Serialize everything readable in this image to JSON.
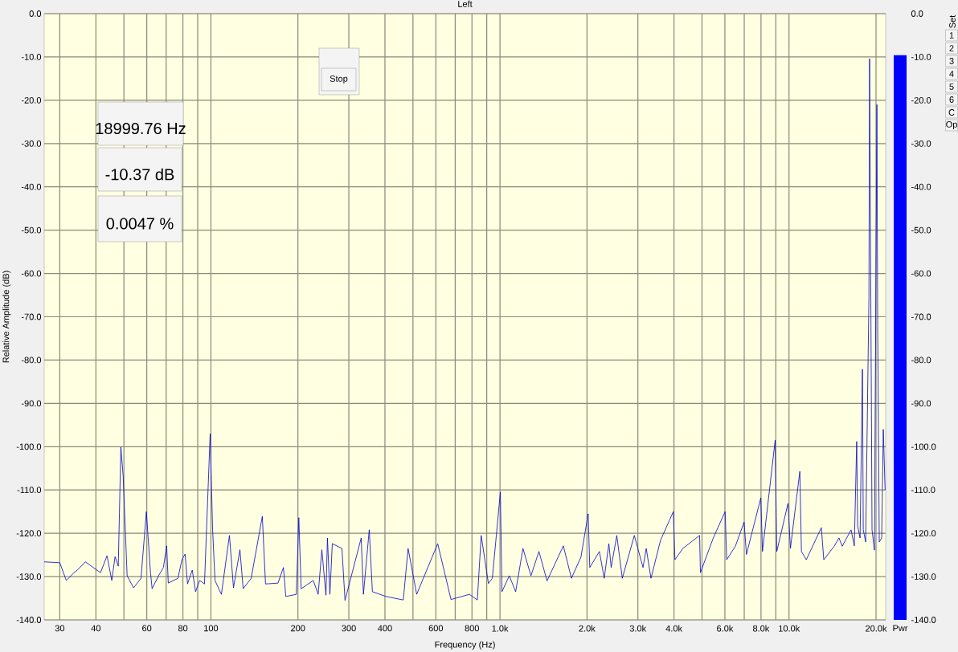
{
  "chart_data": [
    {
      "type": "line",
      "title": "Left",
      "xlabel": "Frequency (Hz)",
      "ylabel": "Relative Amplitude (dB)",
      "log": "x",
      "grid": true,
      "x": [
        26.5,
        30,
        31.6,
        33.6,
        34.5,
        36.8,
        41.5,
        43.7,
        45.4,
        46.6,
        47.8,
        48.8,
        49.7,
        51.3,
        54.0,
        57.3,
        59.8,
        61.8,
        62.6,
        65.9,
        68.5,
        70.3,
        71.2,
        76.9,
        79.4,
        81.4,
        83.0,
        86.2,
        88.5,
        91.4,
        95.0,
        99.4,
        101.3,
        103.3,
        108.7,
        115.9,
        119.7,
        126,
        129.3,
        137.8,
        150.6,
        154.5,
        170.6,
        178.2,
        181.6,
        197.5,
        201.4,
        205.2,
        226,
        235,
        242,
        250,
        253,
        258,
        263,
        284,
        291,
        331,
        337,
        353,
        362,
        404,
        463,
        481,
        515,
        609,
        677,
        784,
        835,
        861,
        912,
        941,
        1003,
        1016,
        1077,
        1133,
        1201,
        1280,
        1364,
        1455,
        1657,
        1767,
        1906,
        2019,
        2045,
        2208,
        2294,
        2381,
        2425,
        2536,
        2650,
        2916,
        3125,
        3206,
        3330,
        3594,
        3979,
        4030,
        4293,
        4905,
        4937,
        5468,
        6011,
        6087,
        6522,
        6991,
        7124,
        7989,
        8093,
        8955,
        9072,
        9918,
        10112,
        10900,
        11039,
        11474,
        12937,
        13188,
        14329,
        14891,
        15279,
        16394,
        16822,
        17145,
        17278,
        17610,
        17950,
        18066,
        18415,
        18900,
        19000,
        19375,
        19750,
        20136,
        20264,
        20523,
        20920,
        21189,
        21500
      ],
      "series": [
        {
          "color": "#0000cc",
          "values": [
            -126.6,
            -126.8,
            -130.9,
            -129.1,
            -128.5,
            -126.6,
            -129.1,
            -125.2,
            -130.9,
            -125.4,
            -127.6,
            -100.1,
            -106.8,
            -129.8,
            -132.6,
            -130.4,
            -115.0,
            -129.1,
            -132.8,
            -129.8,
            -127.9,
            -122.9,
            -131.5,
            -130.4,
            -126.1,
            -124.8,
            -131.7,
            -128.5,
            -133.5,
            -130.9,
            -131.7,
            -97.0,
            -118.7,
            -130.9,
            -134.1,
            -120.5,
            -132.6,
            -123.8,
            -132.8,
            -130.4,
            -116.1,
            -131.7,
            -131.5,
            -127.9,
            -134.6,
            -134.1,
            -116.4,
            -132.8,
            -130.9,
            -134.1,
            -123.8,
            -134.3,
            -121.1,
            -134.1,
            -122.4,
            -123.5,
            -135.5,
            -121.1,
            -134.1,
            -119.2,
            -133.5,
            -134.6,
            -135.4,
            -123.5,
            -134.1,
            -122.4,
            -135.3,
            -134.1,
            -135.4,
            -120.5,
            -131.6,
            -130.4,
            -110.5,
            -133.5,
            -129.8,
            -133.5,
            -123.5,
            -129.8,
            -124.2,
            -131.0,
            -122.9,
            -130.4,
            -125.5,
            -115.5,
            -127.9,
            -124.2,
            -130.4,
            -122.4,
            -127.9,
            -120.5,
            -130.4,
            -120.5,
            -127.9,
            -123.5,
            -130.4,
            -121.6,
            -115.0,
            -126.1,
            -123.5,
            -120.5,
            -129.1,
            -121.1,
            -115.0,
            -126.1,
            -123.0,
            -117.4,
            -124.9,
            -111.8,
            -124.2,
            -98.5,
            -124.2,
            -113.1,
            -123.5,
            -105.7,
            -124.2,
            -126.1,
            -118.7,
            -126.1,
            -123.0,
            -121.1,
            -123.0,
            -119.2,
            -122.9,
            -98.8,
            -118.3,
            -121.1,
            -82.1,
            -119.2,
            -122.0,
            -65.5,
            -10.4,
            -119.2,
            -123.9,
            -21.0,
            -72.0,
            -122.0,
            -121.1,
            -96.0,
            -110.0
          ]
        }
      ],
      "xlim": [
        26.5,
        21600
      ],
      "ylim": [
        -140,
        0
      ],
      "xticks": [
        30,
        40,
        {
          "value": 50,
          "label": null
        },
        60,
        {
          "value": 70,
          "label": null
        },
        80,
        {
          "value": 90,
          "label": null
        },
        100,
        200,
        300,
        400,
        {
          "value": 500,
          "label": null
        },
        600,
        {
          "value": 700,
          "label": null
        },
        800,
        {
          "value": 900,
          "label": null
        },
        {
          "value": 1000,
          "label": "1.0k"
        },
        {
          "value": 2000,
          "label": "2.0k"
        },
        {
          "value": 3000,
          "label": "3.0k"
        },
        {
          "value": 4000,
          "label": "4.0k"
        },
        {
          "value": 5000,
          "label": null
        },
        {
          "value": 6000,
          "label": "6.0k"
        },
        {
          "value": 7000,
          "label": null
        },
        {
          "value": 8000,
          "label": "8.0k"
        },
        {
          "value": 9000,
          "label": null
        },
        {
          "value": 10000,
          "label": "10.0k"
        },
        {
          "value": 20000,
          "label": "20.0k"
        }
      ],
      "yticks": [
        {
          "value": 0,
          "label": "0.0"
        },
        {
          "value": -10,
          "label": "-10.0"
        },
        {
          "value": -20,
          "label": "-20.0"
        },
        {
          "value": -30,
          "label": "-30.0"
        },
        {
          "value": -40,
          "label": "-40.0"
        },
        {
          "value": -50,
          "label": "-50.0"
        },
        {
          "value": -60,
          "label": "-60.0"
        },
        {
          "value": -70,
          "label": "-70.0"
        },
        {
          "value": -80,
          "label": "-80.0"
        },
        {
          "value": -90,
          "label": "-90.0"
        },
        {
          "value": -100,
          "label": "-100.0"
        },
        {
          "value": -110,
          "label": "-110.0"
        },
        {
          "value": -120,
          "label": "-120.0"
        },
        {
          "value": -130,
          "label": "-130.0"
        },
        {
          "value": -140,
          "label": "-140.0"
        }
      ],
      "annotations": [
        "18999.76 Hz",
        "-10.37 dB",
        "0.0047 %",
        "Stop"
      ]
    },
    {
      "type": "bar",
      "categories": [
        "Pwr"
      ],
      "values": [
        130.4
      ],
      "base": [
        -140
      ],
      "color": "#0000ff",
      "ylim": [
        -140,
        0
      ],
      "yticks": [
        {
          "value": 0,
          "label": "0.0"
        },
        {
          "value": -10,
          "label": "-10.0"
        },
        {
          "value": -20,
          "label": "-20.0"
        },
        {
          "value": -30,
          "label": "-30.0"
        },
        {
          "value": -40,
          "label": "-40.0"
        },
        {
          "value": -50,
          "label": "-50.0"
        },
        {
          "value": -60,
          "label": "-60.0"
        },
        {
          "value": -70,
          "label": "-70.0"
        },
        {
          "value": -80,
          "label": "-80.0"
        },
        {
          "value": -90,
          "label": "-90.0"
        },
        {
          "value": -100,
          "label": "-100.0"
        },
        {
          "value": -110,
          "label": "-110.0"
        },
        {
          "value": -120,
          "label": "-120.0"
        },
        {
          "value": -130,
          "label": "-130.0"
        },
        {
          "value": -140,
          "label": "-140.0"
        }
      ],
      "annotations": [
        "Set",
        "1",
        "2",
        "3",
        "4",
        "5",
        "6",
        "C",
        "Op"
      ]
    }
  ]
}
